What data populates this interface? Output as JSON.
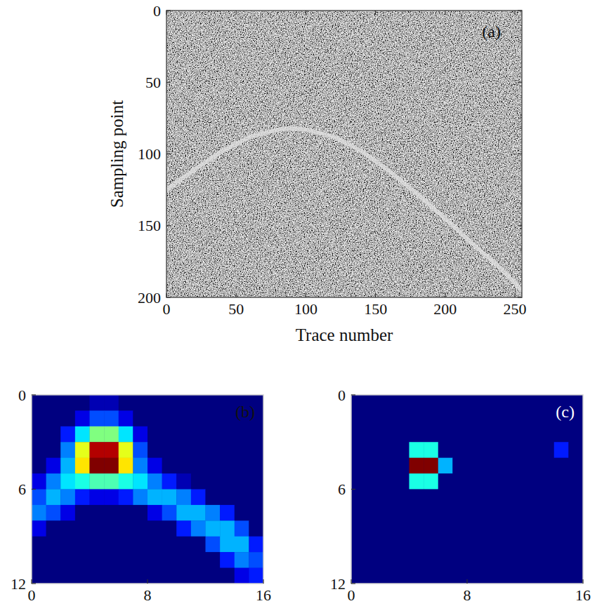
{
  "chart_data": [
    {
      "type": "line",
      "title": "(a)",
      "x_label": "Trace number",
      "y_label": "Sampling point",
      "xlim": [
        0,
        255
      ],
      "ylim": [
        0,
        200
      ],
      "xticks": [
        0,
        50,
        100,
        150,
        200,
        250
      ],
      "yticks": [
        0,
        50,
        100,
        150,
        200
      ],
      "x": [
        0,
        20,
        40,
        60,
        80,
        90,
        100,
        120,
        140,
        160,
        180,
        200,
        220,
        240,
        255
      ],
      "values": [
        125,
        111,
        98,
        88,
        83,
        82,
        83,
        88,
        98,
        112,
        128,
        145,
        163,
        180,
        195
      ],
      "color": "#dedede"
    },
    {
      "type": "heatmap",
      "title": "(b)",
      "xlim": [
        0,
        16
      ],
      "ylim": [
        0,
        12
      ],
      "xticks": [
        0,
        8,
        16
      ],
      "yticks": [
        0,
        6,
        12
      ],
      "clim": [
        0,
        1
      ],
      "cells": [
        [
          0,
          0,
          0,
          0,
          0.05,
          0.05,
          0,
          0,
          0,
          0,
          0,
          0,
          0,
          0,
          0,
          0
        ],
        [
          0,
          0,
          0,
          0.1,
          0.2,
          0.2,
          0.1,
          0,
          0,
          0,
          0,
          0,
          0,
          0,
          0,
          0
        ],
        [
          0,
          0,
          0.15,
          0.35,
          0.5,
          0.5,
          0.35,
          0.1,
          0,
          0,
          0,
          0,
          0,
          0,
          0,
          0
        ],
        [
          0,
          0,
          0.25,
          0.6,
          0.95,
          0.95,
          0.6,
          0.2,
          0,
          0,
          0,
          0,
          0,
          0,
          0,
          0
        ],
        [
          0,
          0.1,
          0.3,
          0.65,
          1,
          1,
          0.65,
          0.25,
          0.1,
          0,
          0,
          0,
          0,
          0,
          0,
          0
        ],
        [
          0.1,
          0.25,
          0.35,
          0.4,
          0.45,
          0.45,
          0.4,
          0.35,
          0.25,
          0.15,
          0.05,
          0,
          0,
          0,
          0,
          0
        ],
        [
          0.2,
          0.3,
          0.25,
          0.15,
          0.1,
          0.1,
          0.15,
          0.25,
          0.3,
          0.3,
          0.25,
          0.15,
          0,
          0,
          0,
          0
        ],
        [
          0.25,
          0.2,
          0.1,
          0,
          0,
          0,
          0,
          0,
          0.1,
          0.2,
          0.3,
          0.3,
          0.25,
          0.15,
          0,
          0
        ],
        [
          0.1,
          0,
          0,
          0,
          0,
          0,
          0,
          0,
          0,
          0,
          0.15,
          0.25,
          0.3,
          0.3,
          0.2,
          0
        ],
        [
          0,
          0,
          0,
          0,
          0,
          0,
          0,
          0,
          0,
          0,
          0,
          0,
          0.2,
          0.3,
          0.3,
          0.15
        ],
        [
          0,
          0,
          0,
          0,
          0,
          0,
          0,
          0,
          0,
          0,
          0,
          0,
          0,
          0.15,
          0.25,
          0.2
        ],
        [
          0,
          0,
          0,
          0,
          0,
          0,
          0,
          0,
          0,
          0,
          0,
          0,
          0,
          0,
          0.1,
          0.15
        ]
      ]
    },
    {
      "type": "heatmap",
      "title": "(c)",
      "xlim": [
        0,
        16
      ],
      "ylim": [
        0,
        12
      ],
      "xticks": [
        0,
        8,
        16
      ],
      "yticks": [
        0,
        6,
        12
      ],
      "clim": [
        0,
        1
      ],
      "cells": [
        [
          0,
          0,
          0,
          0,
          0,
          0,
          0,
          0,
          0,
          0,
          0,
          0,
          0,
          0,
          0,
          0
        ],
        [
          0,
          0,
          0,
          0,
          0,
          0,
          0,
          0,
          0,
          0,
          0,
          0,
          0,
          0,
          0,
          0
        ],
        [
          0,
          0,
          0,
          0,
          0,
          0,
          0,
          0,
          0,
          0,
          0,
          0,
          0,
          0,
          0,
          0
        ],
        [
          0,
          0,
          0,
          0,
          0.4,
          0.4,
          0,
          0,
          0,
          0,
          0,
          0,
          0,
          0,
          0.15,
          0
        ],
        [
          0,
          0,
          0,
          0,
          1,
          1,
          0.3,
          0,
          0,
          0,
          0,
          0,
          0,
          0,
          0,
          0
        ],
        [
          0,
          0,
          0,
          0,
          0.4,
          0.4,
          0,
          0,
          0,
          0,
          0,
          0,
          0,
          0,
          0,
          0
        ],
        [
          0,
          0,
          0,
          0,
          0,
          0,
          0,
          0,
          0,
          0,
          0,
          0,
          0,
          0,
          0,
          0
        ],
        [
          0,
          0,
          0,
          0,
          0,
          0,
          0,
          0,
          0,
          0,
          0,
          0,
          0,
          0,
          0,
          0
        ],
        [
          0,
          0,
          0,
          0,
          0,
          0,
          0,
          0,
          0,
          0,
          0,
          0,
          0,
          0,
          0,
          0
        ],
        [
          0,
          0,
          0,
          0,
          0,
          0,
          0,
          0,
          0,
          0,
          0,
          0,
          0,
          0,
          0,
          0
        ],
        [
          0,
          0,
          0,
          0,
          0,
          0,
          0,
          0,
          0,
          0,
          0,
          0,
          0,
          0,
          0,
          0
        ],
        [
          0,
          0,
          0,
          0,
          0,
          0,
          0,
          0,
          0,
          0,
          0,
          0,
          0,
          0,
          0,
          0
        ]
      ]
    }
  ]
}
